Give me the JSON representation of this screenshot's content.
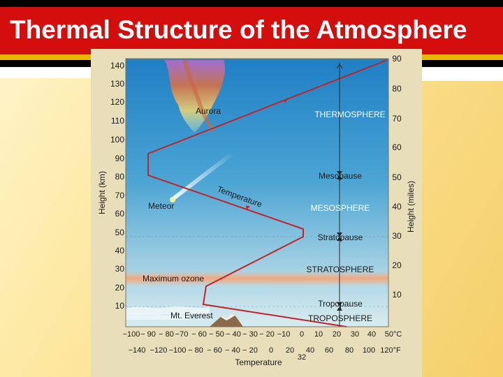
{
  "title": "Thermal Structure of the Atmosphere",
  "figure": {
    "left_axis_label": "Height (km)",
    "right_axis_label": "Height (miles)",
    "km_ticks": [
      "140",
      "130",
      "120",
      "110",
      "100",
      "90",
      "80",
      "70",
      "60",
      "50",
      "40",
      "30",
      "20",
      "10"
    ],
    "mile_ticks": [
      "90",
      "80",
      "70",
      "60",
      "50",
      "40",
      "30",
      "20",
      "10"
    ],
    "celsius_ticks": [
      "−100",
      "− 90",
      "− 80",
      "−70",
      "− 60",
      "− 50",
      "− 40",
      "− 30",
      "− 20",
      "−10",
      "0",
      "10",
      "20",
      "30",
      "40",
      "50°C"
    ],
    "fahrenheit_ticks": [
      "−140",
      "−120",
      "−100",
      "− 80",
      "− 60",
      "− 40",
      "− 20",
      "0",
      "20",
      "40",
      "60",
      "80",
      "100",
      "120°F"
    ],
    "freezing_label": "32",
    "temperature_axis_title": "Temperature",
    "curve_label": "Temperature",
    "layers": {
      "thermosphere": "THERMOSPHERE",
      "mesopause": "Mesopause",
      "mesosphere": "MESOSPHERE",
      "stratopause": "Stratopause",
      "stratosphere": "STRATOSPHERE",
      "tropopause": "Tropopause",
      "troposphere": "TROPOSPHERE"
    },
    "features": {
      "aurora": "Aurora",
      "meteor": "Meteor",
      "maximum_ozone": "Maximum ozone",
      "everest": "Mt. Everest"
    },
    "colors": {
      "header_red": "#d40d0d",
      "header_gold": "#e6b800",
      "sky_top": "#1f7fc4",
      "sky_bottom": "#cfe6ee",
      "frame": "#e8dfba",
      "curve": "#c0242a",
      "ozone": "#f3b58f"
    }
  }
}
